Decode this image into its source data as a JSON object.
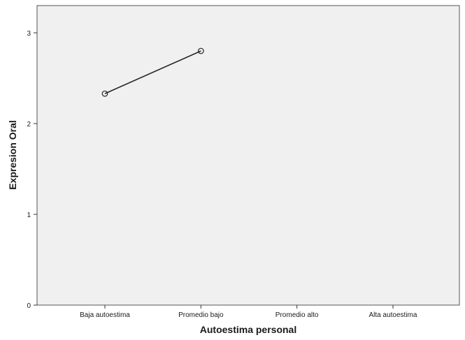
{
  "chart_data": {
    "type": "line",
    "title": "",
    "xlabel": "Autoestima personal",
    "ylabel": "Expresion Oral",
    "categories": [
      "Baja autoestima",
      "Promedio bajo",
      "Promedio alto",
      "Alta autoestima"
    ],
    "y_ticks": [
      0,
      1,
      2,
      3
    ],
    "ylim": [
      0,
      3.3
    ],
    "grid": false,
    "series": [
      {
        "values": [
          2.33,
          2.8,
          null,
          null
        ]
      }
    ],
    "colors": {
      "plot_background": "#f0f0f0",
      "line": "#262626",
      "axis": "#333333"
    },
    "marker": "open-circle"
  }
}
